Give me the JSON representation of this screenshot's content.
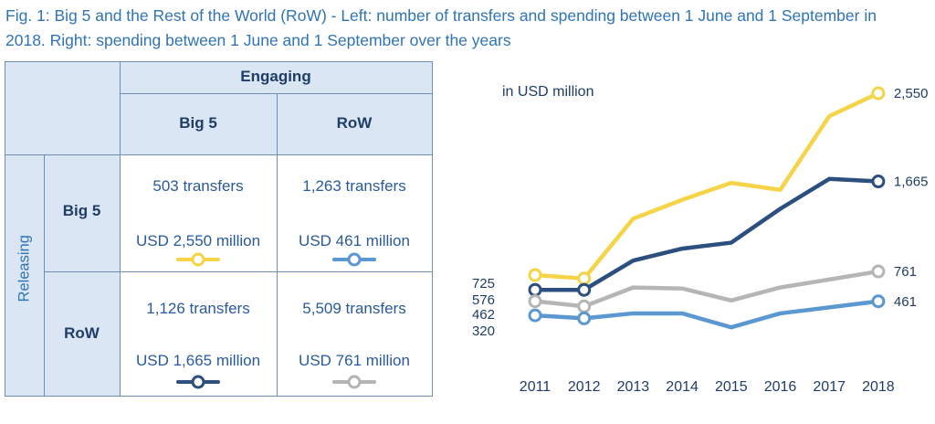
{
  "title": "Fig. 1: Big 5 and the Rest of the World (RoW) - Left: number of transfers and spending between 1 June and 1 September in 2018. Right: spending between 1 June and 1 September over the years",
  "table": {
    "engaging_label": "Engaging",
    "releasing_label": "Releasing",
    "col_headers": [
      "Big 5",
      "RoW"
    ],
    "row_headers": [
      "Big 5",
      "RoW"
    ],
    "cells": [
      [
        {
          "transfers": "503 transfers",
          "spending": "USD 2,550 million",
          "color": "#f5d547"
        },
        {
          "transfers": "1,263 transfers",
          "spending": "USD 461 million",
          "color": "#5b97d0"
        }
      ],
      [
        {
          "transfers": "1,126 transfers",
          "spending": "USD 1,665 million",
          "color": "#2c4f80"
        },
        {
          "transfers": "5,509 transfers",
          "spending": "USD 761 million",
          "color": "#b5b5b5"
        }
      ]
    ]
  },
  "chart_data": {
    "type": "line",
    "unit_label": "in USD million",
    "x": [
      2011,
      2012,
      2013,
      2014,
      2015,
      2016,
      2017,
      2018
    ],
    "series": [
      {
        "key": "big5_big5",
        "color": "#f5d547",
        "values": [
          725,
          690,
          1290,
          1480,
          1650,
          1580,
          2320,
          2550
        ],
        "start_label": "725",
        "end_label": "2,550"
      },
      {
        "key": "row_big5",
        "color": "#2c4f80",
        "values": [
          576,
          576,
          870,
          990,
          1050,
          1390,
          1690,
          1665
        ],
        "start_label": "576",
        "end_label": "1,665"
      },
      {
        "key": "row_row",
        "color": "#b5b5b5",
        "values": [
          462,
          410,
          600,
          590,
          470,
          600,
          680,
          761
        ],
        "start_label": "462",
        "end_label": "761"
      },
      {
        "key": "big5_row",
        "color": "#5b97d0",
        "values": [
          320,
          290,
          340,
          340,
          200,
          340,
          400,
          461
        ],
        "start_label": "320",
        "end_label": "461"
      }
    ],
    "ylim": [
      0,
      2700
    ],
    "grid": false,
    "legend": "none"
  }
}
